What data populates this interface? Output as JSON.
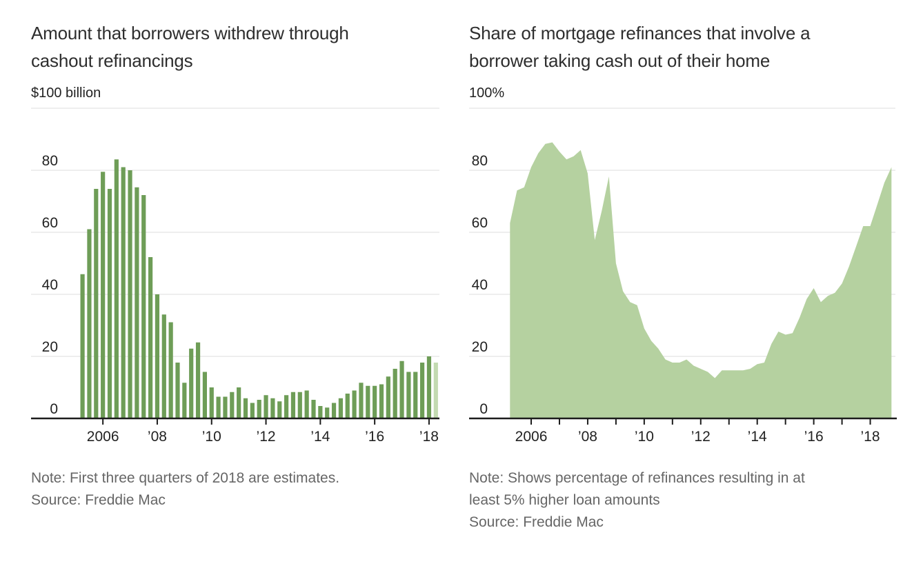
{
  "chart_data": [
    {
      "type": "bar",
      "title": "Amount that borrowers withdrew through cashout refinancings",
      "title_lines": [
        "Amount that borrowers withdrew through",
        "cashout refinancings"
      ],
      "unit_label": "$100 billion",
      "ylabel": "$ billion",
      "ylim": [
        0,
        100
      ],
      "y_ticks": [
        0,
        20,
        40,
        60,
        80,
        100
      ],
      "x_tick_labels": [
        "2006",
        "’08",
        "’10",
        "’12",
        "’14",
        "’16",
        "’18"
      ],
      "frequency": "quarterly",
      "start": "2005 Q2",
      "end": "2018 Q2",
      "grid": "on",
      "legend": "none",
      "color": "#6e9d57",
      "estimate_color": "#c3dab1",
      "estimated_last_bars": 1,
      "values": [
        46.5,
        61,
        74,
        79.5,
        74,
        83.5,
        81,
        80,
        74.5,
        72,
        52,
        40,
        33.5,
        31,
        18,
        11.5,
        22.5,
        24.5,
        15,
        10,
        7,
        7,
        8.5,
        10,
        6.5,
        5,
        6,
        7.5,
        6.5,
        5.5,
        7.5,
        8.5,
        8.5,
        9,
        6,
        4,
        3.5,
        5,
        6.5,
        8,
        9,
        11.5,
        10.5,
        10.5,
        11,
        13.5,
        16,
        18.5,
        15,
        15,
        18,
        20,
        18
      ],
      "note_lines": [
        "Note: First three quarters of 2018 are estimates.",
        "Source: Freddie Mac"
      ]
    },
    {
      "type": "area",
      "title": "Share of mortgage refinances that involve a borrower taking cash out of their home",
      "title_lines": [
        "Share of mortgage refinances that involve a",
        "borrower taking cash out of their home"
      ],
      "unit_label": "100%",
      "ylabel": "percent",
      "ylim": [
        0,
        100
      ],
      "y_ticks": [
        0,
        20,
        40,
        60,
        80,
        100
      ],
      "x_tick_labels": [
        "2006",
        "’08",
        "’10",
        "’12",
        "’14",
        "’16",
        "’18"
      ],
      "x_minor_ticks_between_years": true,
      "frequency": "quarterly",
      "start": "2005 Q2",
      "end": "2018 Q4",
      "grid": "on",
      "legend": "none",
      "color": "#b5d1a0",
      "values": [
        63,
        73.5,
        74.5,
        81,
        85.5,
        88.5,
        89,
        86,
        83.5,
        84.5,
        86.5,
        79,
        57.5,
        67,
        78,
        50,
        41,
        37.5,
        36.5,
        29,
        25,
        22.5,
        19,
        18,
        18,
        19,
        17,
        16,
        15,
        13,
        15.5,
        15.5,
        15.5,
        15.5,
        16,
        17.5,
        18,
        24,
        28,
        27,
        27.5,
        32.5,
        38.5,
        42,
        37.5,
        39.5,
        40.5,
        43.5,
        49,
        55.5,
        62,
        62,
        69,
        76,
        81
      ],
      "note_lines": [
        "Note: Shows percentage of refinances resulting in at",
        "least 5% higher loan amounts",
        "Source: Freddie Mac"
      ]
    }
  ]
}
